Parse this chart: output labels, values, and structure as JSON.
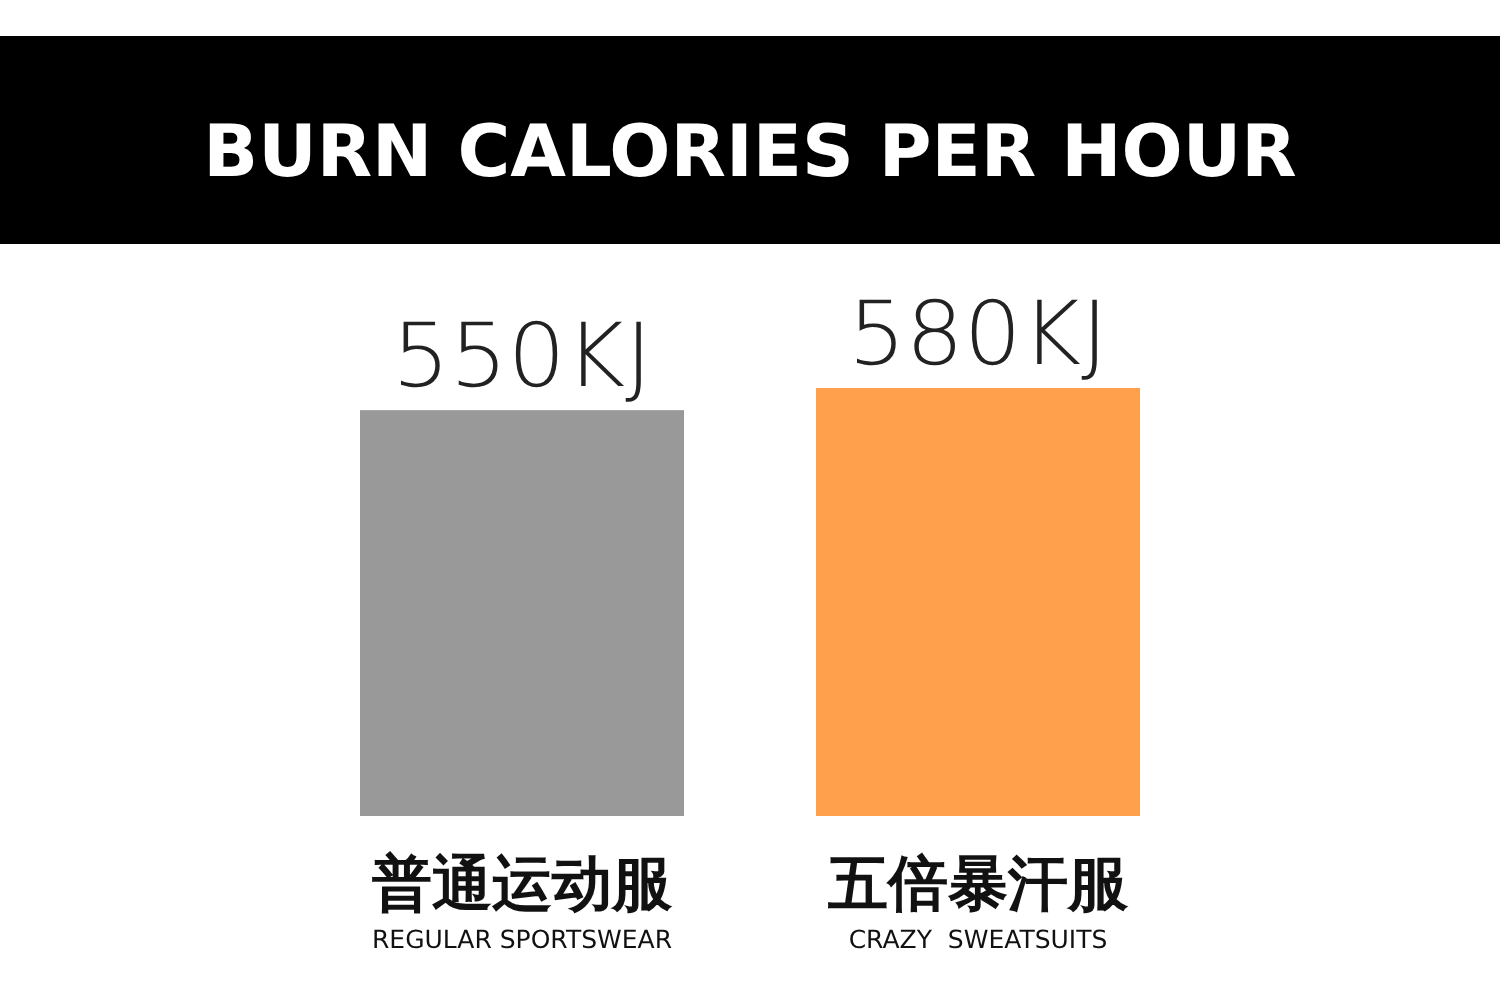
{
  "chart_data": {
    "type": "bar",
    "title": "BURN CALORIES PER HOUR",
    "categories": [
      "普通运动服\nREGULAR SPORTSWEAR",
      "五倍暴汗服\nCRAZY  SWEATSUITS"
    ],
    "values": [
      550,
      580
    ],
    "colors": [
      "#999999",
      "#ffa04d"
    ],
    "value_labels": [
      "550KJ",
      "580KJ"
    ]
  }
}
